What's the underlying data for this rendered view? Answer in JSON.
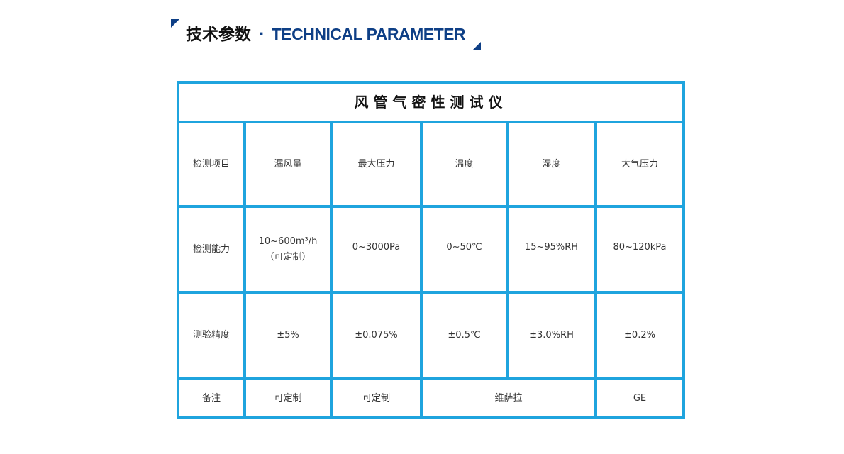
{
  "header": {
    "title_cn": "技术参数",
    "separator": "·",
    "title_en": "TECHNICAL PARAMETER"
  },
  "table": {
    "title": "风管气密性测试仪",
    "rows": [
      [
        "检测项目",
        "漏风量",
        "最大压力",
        "温度",
        "湿度",
        "大气压力"
      ],
      [
        "检测能力",
        "10~600m³/h",
        "0~3000Pa",
        "0~50℃",
        "15~95%RH",
        "80~120kPa"
      ],
      [
        "测验精度",
        "±5%",
        "±0.075%",
        "±0.5℃",
        "±3.0%RH",
        "±0.2%"
      ]
    ],
    "row1_note": "（可定制）",
    "remarks": {
      "label": "备注",
      "c1": "可定制",
      "c2": "可定制",
      "c3": "维萨拉",
      "c4": "GE"
    }
  },
  "colors": {
    "border": "#1fa4de",
    "accent": "#0e3f86"
  }
}
